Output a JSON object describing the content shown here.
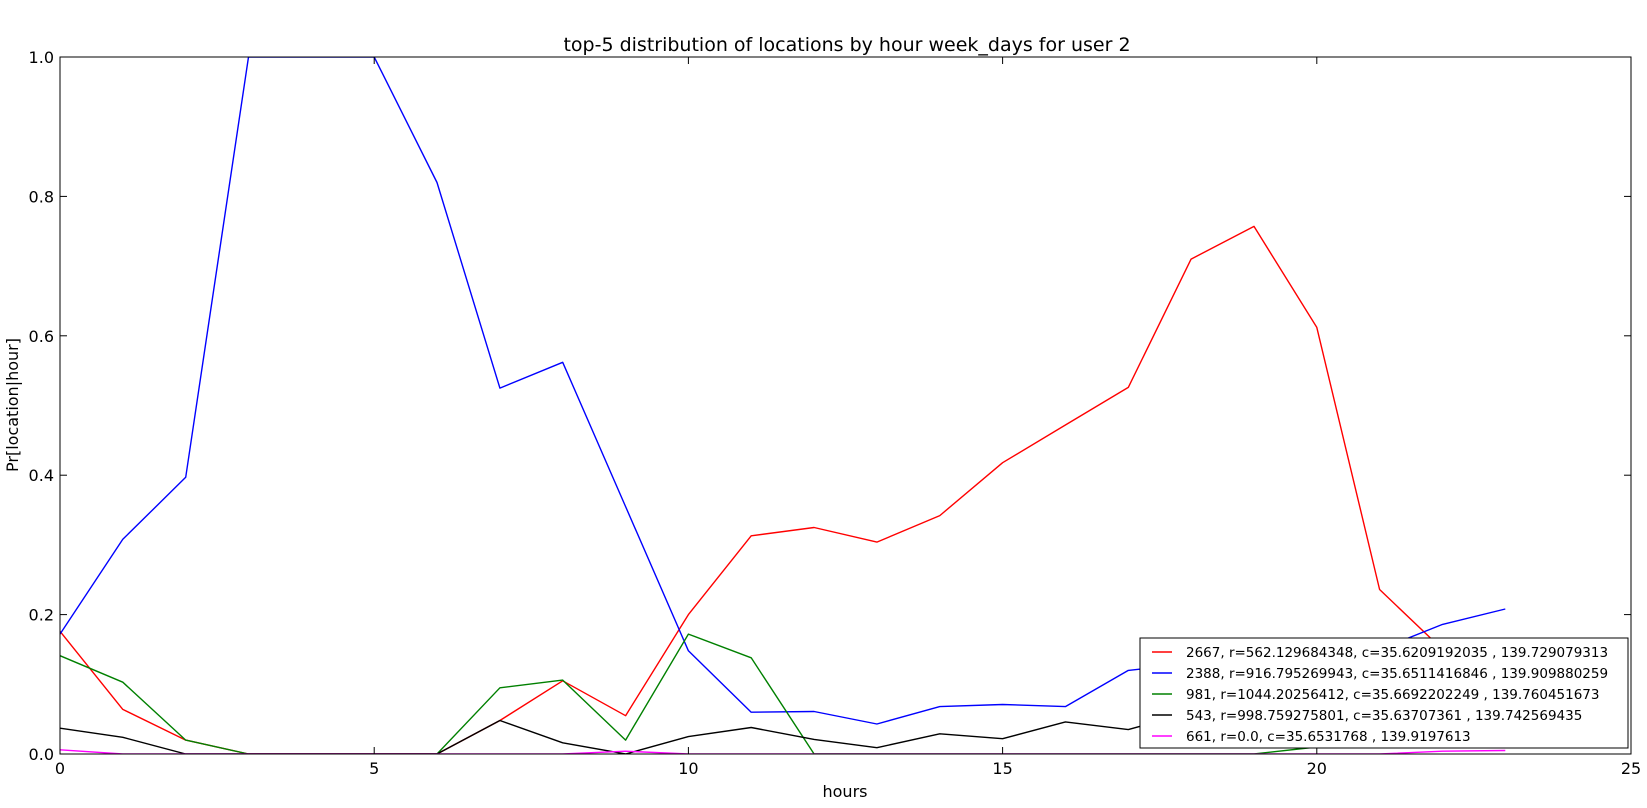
{
  "chart_data": {
    "type": "line",
    "title": "top-5 distribution of locations by hour week_days for user 2",
    "xlabel": "hours",
    "ylabel": "Pr[location|hour]",
    "xlim": [
      0,
      25
    ],
    "ylim": [
      0.0,
      1.0
    ],
    "xticks": [
      0,
      5,
      10,
      15,
      20,
      25
    ],
    "yticks": [
      0.0,
      0.2,
      0.4,
      0.6,
      0.8,
      1.0
    ],
    "xtick_labels": [
      "0",
      "5",
      "10",
      "15",
      "20",
      "25"
    ],
    "ytick_labels": [
      "0.0",
      "0.2",
      "0.4",
      "0.6",
      "0.8",
      "1.0"
    ],
    "grid": false,
    "legend_position": "lower-right",
    "x": [
      0,
      1,
      2,
      3,
      4,
      5,
      6,
      7,
      8,
      9,
      10,
      11,
      12,
      13,
      14,
      15,
      16,
      17,
      18,
      19,
      20,
      21,
      22,
      23
    ],
    "series": [
      {
        "name": "2667, r=562.129684348, c=35.6209192035 , 139.729079313",
        "color": "#ff0000",
        "values": [
          0.176,
          0.064,
          0.02,
          0.0,
          0.0,
          0.0,
          0.0,
          0.048,
          0.105,
          0.055,
          0.2,
          0.313,
          0.325,
          0.304,
          0.342,
          0.418,
          0.472,
          0.526,
          0.71,
          0.757,
          0.612,
          0.236,
          0.15,
          0.13
        ]
      },
      {
        "name": "2388, r=916.795269943, c=35.6511416846 , 139.909880259",
        "color": "#0000ff",
        "values": [
          0.172,
          0.308,
          0.397,
          1.0,
          1.0,
          1.0,
          0.82,
          0.525,
          0.562,
          0.355,
          0.148,
          0.06,
          0.061,
          0.043,
          0.068,
          0.071,
          0.068,
          0.12,
          0.13,
          0.13,
          0.14,
          0.15,
          0.186,
          0.208
        ]
      },
      {
        "name": "981, r=1044.20256412, c=35.6692202249 , 139.760451673",
        "color": "#008000",
        "values": [
          0.141,
          0.103,
          0.02,
          0.0,
          0.0,
          0.0,
          0.0,
          0.095,
          0.106,
          0.02,
          0.172,
          0.138,
          0.0,
          0.0,
          0.0,
          0.0,
          0.0,
          0.0,
          0.0,
          0.0,
          0.01,
          0.01,
          0.01,
          0.01
        ]
      },
      {
        "name": "543, r=998.759275801, c=35.63707361 , 139.742569435",
        "color": "#000000",
        "values": [
          0.037,
          0.024,
          0.0,
          0.0,
          0.0,
          0.0,
          0.0,
          0.048,
          0.016,
          0.0,
          0.025,
          0.038,
          0.021,
          0.009,
          0.029,
          0.022,
          0.046,
          0.035,
          0.06,
          0.02,
          0.01,
          0.01,
          0.01,
          0.01
        ]
      },
      {
        "name": "661, r=0.0, c=35.6531768 , 139.9197613",
        "color": "#ff00ff",
        "values": [
          0.006,
          0.0,
          0.0,
          0.0,
          0.0,
          0.0,
          0.0,
          0.0,
          0.0,
          0.004,
          0.0,
          0.0,
          0.0,
          0.0,
          0.0,
          0.0,
          0.0,
          0.0,
          0.0,
          0.0,
          0.0,
          0.0,
          0.004,
          0.005
        ]
      }
    ]
  }
}
